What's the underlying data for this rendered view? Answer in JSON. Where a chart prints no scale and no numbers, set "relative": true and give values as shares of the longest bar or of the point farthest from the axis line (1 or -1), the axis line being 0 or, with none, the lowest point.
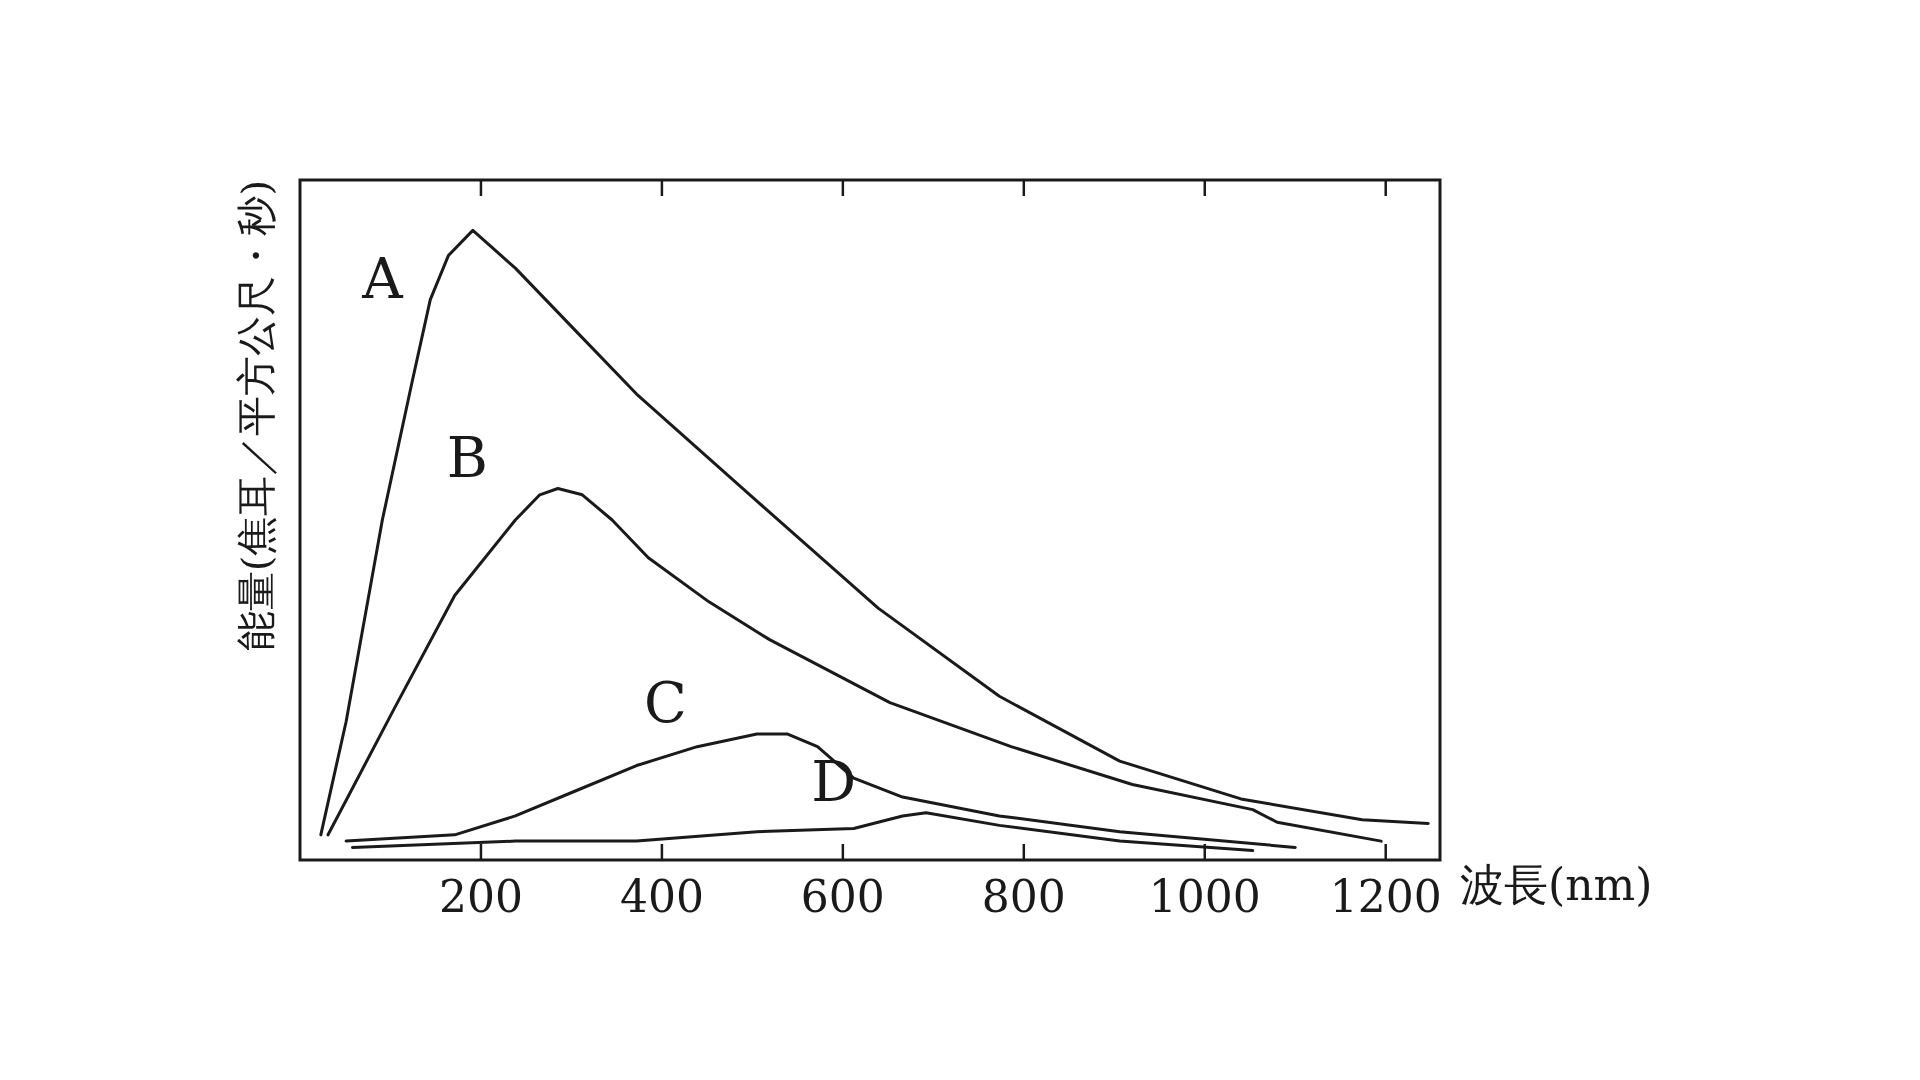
{
  "chart_data": {
    "type": "line",
    "xlabel": "波長(nm)",
    "ylabel": "能量(焦耳／平方公尺・秒)",
    "relative": true,
    "xlim": [
      0,
      1260
    ],
    "xticks": [
      200,
      400,
      600,
      800,
      1000,
      1200
    ],
    "grid": false,
    "legend": false,
    "series": [
      {
        "name": "A",
        "color": "#1a1a1a",
        "x": [
          23,
          51,
          91,
          124,
          144,
          164,
          191,
          238,
          305,
          372,
          505,
          639,
          773,
          906,
          1040,
          1174,
          1247
        ],
        "values": [
          0.04,
          0.22,
          0.54,
          0.76,
          0.89,
          0.96,
          1.0,
          0.94,
          0.84,
          0.74,
          0.57,
          0.4,
          0.26,
          0.157,
          0.097,
          0.064,
          0.058
        ]
      },
      {
        "name": "B",
        "color": "#1a1a1a",
        "x": [
          31,
          104,
          171,
          238,
          265,
          285,
          312,
          345,
          385,
          452,
          519,
          652,
          786,
          920,
          1053,
          1080,
          1195
        ],
        "values": [
          0.04,
          0.24,
          0.42,
          0.54,
          0.58,
          0.59,
          0.58,
          0.54,
          0.48,
          0.41,
          0.35,
          0.25,
          0.18,
          0.12,
          0.08,
          0.06,
          0.03
        ]
      },
      {
        "name": "C",
        "color": "#1a1a1a",
        "x": [
          51,
          171,
          238,
          305,
          372,
          439,
          505,
          539,
          572,
          612,
          666,
          773,
          906,
          1100
        ],
        "values": [
          0.03,
          0.04,
          0.07,
          0.11,
          0.15,
          0.18,
          0.2,
          0.2,
          0.18,
          0.13,
          0.1,
          0.07,
          0.045,
          0.02
        ]
      },
      {
        "name": "D",
        "color": "#1a1a1a",
        "x": [
          58,
          238,
          372,
          505,
          612,
          666,
          692,
          773,
          906,
          1053
        ],
        "values": [
          0.02,
          0.03,
          0.03,
          0.045,
          0.05,
          0.07,
          0.075,
          0.055,
          0.03,
          0.015
        ]
      }
    ]
  }
}
